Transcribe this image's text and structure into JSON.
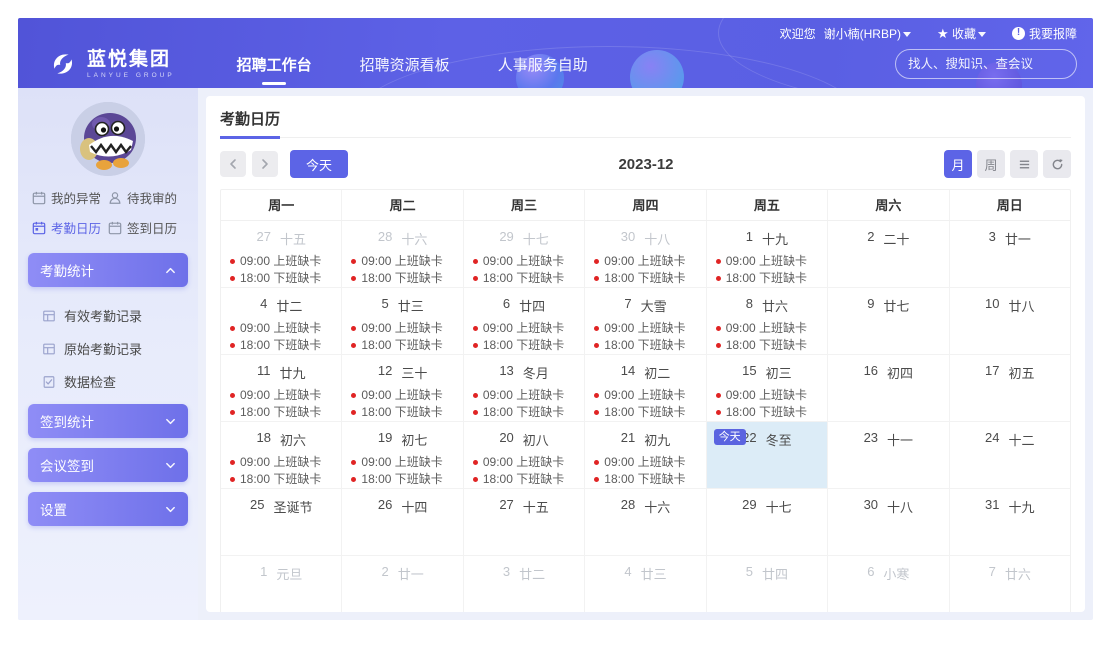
{
  "colors": {
    "accent": "#5c64e6",
    "header_gradient": [
      "#5154d8",
      "#6165ea"
    ],
    "today_cell_bg": "#dcecf7",
    "event_dot": "#e02424",
    "sidebar_bg": "#e3e7fb"
  },
  "header": {
    "logo": {
      "title": "蓝悦集团",
      "subtitle": "LANYUE GROUP"
    },
    "nav": [
      {
        "label": "招聘工作台",
        "active": true
      },
      {
        "label": "招聘资源看板",
        "active": false
      },
      {
        "label": "人事服务自助",
        "active": false
      }
    ],
    "welcome": {
      "prefix": "欢迎您",
      "user": "谢小楠(HRBP)",
      "favorites": "收藏",
      "report": "我要报障",
      "alert_glyph": "!",
      "star_glyph": "★"
    },
    "search": {
      "placeholder": "找人、搜知识、查会议"
    }
  },
  "sidebar": {
    "quick_links": [
      {
        "label": "我的异常",
        "icon": "calendar-icon",
        "active": false
      },
      {
        "label": "待我审的",
        "icon": "user-icon",
        "active": false
      },
      {
        "label": "考勤日历",
        "icon": "calendar-icon",
        "active": true
      },
      {
        "label": "签到日历",
        "icon": "calendar-icon",
        "active": false
      }
    ],
    "sections": [
      {
        "label": "考勤统计",
        "expanded": true,
        "items": [
          {
            "label": "有效考勤记录",
            "icon": "table-icon"
          },
          {
            "label": "原始考勤记录",
            "icon": "table-icon"
          },
          {
            "label": "数据检查",
            "icon": "check-doc-icon"
          }
        ]
      },
      {
        "label": "签到统计",
        "expanded": false,
        "items": []
      },
      {
        "label": "会议签到",
        "expanded": false,
        "items": []
      },
      {
        "label": "设置",
        "expanded": false,
        "items": []
      }
    ]
  },
  "calendar": {
    "title": "考勤日历",
    "toolbar": {
      "today": "今天",
      "month_label": "2023-12",
      "view_month": "月",
      "view_week": "周"
    },
    "weekdays": [
      "周一",
      "周二",
      "周三",
      "周四",
      "周五",
      "周六",
      "周日"
    ],
    "today_badge": "今天",
    "missing_in": "09:00 上班缺卡",
    "missing_out": "18:00 下班缺卡",
    "weeks": [
      [
        {
          "date": "27",
          "lunar": "十五",
          "om": true,
          "today": false,
          "events": [
            "09:00 上班缺卡",
            "18:00 下班缺卡"
          ]
        },
        {
          "date": "28",
          "lunar": "十六",
          "om": true,
          "today": false,
          "events": [
            "09:00 上班缺卡",
            "18:00 下班缺卡"
          ]
        },
        {
          "date": "29",
          "lunar": "十七",
          "om": true,
          "today": false,
          "events": [
            "09:00 上班缺卡",
            "18:00 下班缺卡"
          ]
        },
        {
          "date": "30",
          "lunar": "十八",
          "om": true,
          "today": false,
          "events": [
            "09:00 上班缺卡",
            "18:00 下班缺卡"
          ]
        },
        {
          "date": "1",
          "lunar": "十九",
          "om": false,
          "today": false,
          "events": [
            "09:00 上班缺卡",
            "18:00 下班缺卡"
          ]
        },
        {
          "date": "2",
          "lunar": "二十",
          "om": false,
          "today": false,
          "events": []
        },
        {
          "date": "3",
          "lunar": "廿一",
          "om": false,
          "today": false,
          "events": []
        }
      ],
      [
        {
          "date": "4",
          "lunar": "廿二",
          "om": false,
          "today": false,
          "events": [
            "09:00 上班缺卡",
            "18:00 下班缺卡"
          ]
        },
        {
          "date": "5",
          "lunar": "廿三",
          "om": false,
          "today": false,
          "events": [
            "09:00 上班缺卡",
            "18:00 下班缺卡"
          ]
        },
        {
          "date": "6",
          "lunar": "廿四",
          "om": false,
          "today": false,
          "events": [
            "09:00 上班缺卡",
            "18:00 下班缺卡"
          ]
        },
        {
          "date": "7",
          "lunar": "大雪",
          "om": false,
          "today": false,
          "events": [
            "09:00 上班缺卡",
            "18:00 下班缺卡"
          ]
        },
        {
          "date": "8",
          "lunar": "廿六",
          "om": false,
          "today": false,
          "events": [
            "09:00 上班缺卡",
            "18:00 下班缺卡"
          ]
        },
        {
          "date": "9",
          "lunar": "廿七",
          "om": false,
          "today": false,
          "events": []
        },
        {
          "date": "10",
          "lunar": "廿八",
          "om": false,
          "today": false,
          "events": []
        }
      ],
      [
        {
          "date": "11",
          "lunar": "廿九",
          "om": false,
          "today": false,
          "events": [
            "09:00 上班缺卡",
            "18:00 下班缺卡"
          ]
        },
        {
          "date": "12",
          "lunar": "三十",
          "om": false,
          "today": false,
          "events": [
            "09:00 上班缺卡",
            "18:00 下班缺卡"
          ]
        },
        {
          "date": "13",
          "lunar": "冬月",
          "om": false,
          "today": false,
          "events": [
            "09:00 上班缺卡",
            "18:00 下班缺卡"
          ]
        },
        {
          "date": "14",
          "lunar": "初二",
          "om": false,
          "today": false,
          "events": [
            "09:00 上班缺卡",
            "18:00 下班缺卡"
          ]
        },
        {
          "date": "15",
          "lunar": "初三",
          "om": false,
          "today": false,
          "events": [
            "09:00 上班缺卡",
            "18:00 下班缺卡"
          ]
        },
        {
          "date": "16",
          "lunar": "初四",
          "om": false,
          "today": false,
          "events": []
        },
        {
          "date": "17",
          "lunar": "初五",
          "om": false,
          "today": false,
          "events": []
        }
      ],
      [
        {
          "date": "18",
          "lunar": "初六",
          "om": false,
          "today": false,
          "events": [
            "09:00 上班缺卡",
            "18:00 下班缺卡"
          ]
        },
        {
          "date": "19",
          "lunar": "初七",
          "om": false,
          "today": false,
          "events": [
            "09:00 上班缺卡",
            "18:00 下班缺卡"
          ]
        },
        {
          "date": "20",
          "lunar": "初八",
          "om": false,
          "today": false,
          "events": [
            "09:00 上班缺卡",
            "18:00 下班缺卡"
          ]
        },
        {
          "date": "21",
          "lunar": "初九",
          "om": false,
          "today": false,
          "events": [
            "09:00 上班缺卡",
            "18:00 下班缺卡"
          ]
        },
        {
          "date": "22",
          "lunar": "冬至",
          "om": false,
          "today": true,
          "events": []
        },
        {
          "date": "23",
          "lunar": "十一",
          "om": false,
          "today": false,
          "events": []
        },
        {
          "date": "24",
          "lunar": "十二",
          "om": false,
          "today": false,
          "events": []
        }
      ],
      [
        {
          "date": "25",
          "lunar": "圣诞节",
          "om": false,
          "today": false,
          "events": []
        },
        {
          "date": "26",
          "lunar": "十四",
          "om": false,
          "today": false,
          "events": []
        },
        {
          "date": "27",
          "lunar": "十五",
          "om": false,
          "today": false,
          "events": []
        },
        {
          "date": "28",
          "lunar": "十六",
          "om": false,
          "today": false,
          "events": []
        },
        {
          "date": "29",
          "lunar": "十七",
          "om": false,
          "today": false,
          "events": []
        },
        {
          "date": "30",
          "lunar": "十八",
          "om": false,
          "today": false,
          "events": []
        },
        {
          "date": "31",
          "lunar": "十九",
          "om": false,
          "today": false,
          "events": []
        }
      ],
      [
        {
          "date": "1",
          "lunar": "元旦",
          "om": true,
          "today": false,
          "events": []
        },
        {
          "date": "2",
          "lunar": "廿一",
          "om": true,
          "today": false,
          "events": []
        },
        {
          "date": "3",
          "lunar": "廿二",
          "om": true,
          "today": false,
          "events": []
        },
        {
          "date": "4",
          "lunar": "廿三",
          "om": true,
          "today": false,
          "events": []
        },
        {
          "date": "5",
          "lunar": "廿四",
          "om": true,
          "today": false,
          "events": []
        },
        {
          "date": "6",
          "lunar": "小寒",
          "om": true,
          "today": false,
          "events": []
        },
        {
          "date": "7",
          "lunar": "廿六",
          "om": true,
          "today": false,
          "events": []
        }
      ]
    ]
  }
}
